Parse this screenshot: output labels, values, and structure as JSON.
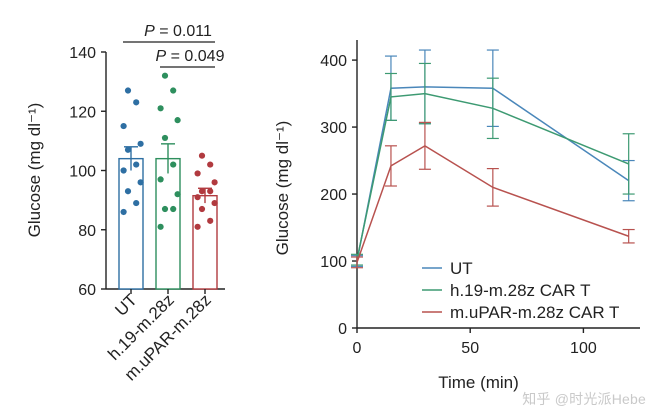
{
  "chart_data": [
    {
      "type": "bar",
      "ylabel": "Glucose (mg dl⁻¹)",
      "ylim": [
        60,
        140
      ],
      "yticks": [
        60,
        80,
        100,
        120,
        140
      ],
      "categories": [
        "UT",
        "h.19-m.28z",
        "m.uPAR-m.28z"
      ],
      "colors": [
        "#2e6fa3",
        "#2e8f5e",
        "#b13a3f"
      ],
      "bar_means": [
        104,
        104,
        91.5
      ],
      "sem": [
        4,
        5,
        2.5
      ],
      "points": [
        [
          127,
          123,
          115,
          109,
          107,
          102,
          100,
          96,
          93,
          89,
          86
        ],
        [
          132,
          127,
          121,
          117,
          111,
          102,
          97,
          92,
          87,
          87,
          81
        ],
        [
          105,
          102,
          99,
          96,
          93,
          93,
          91,
          89,
          87,
          83,
          81
        ]
      ],
      "significance": [
        {
          "from": 0,
          "to": 2,
          "p": "0.011"
        },
        {
          "from": 1,
          "to": 2,
          "p": "0.049"
        }
      ],
      "p_prefix": "P = "
    },
    {
      "type": "line",
      "xlabel": "Time (min)",
      "ylabel": "Glucose (mg dl⁻¹)",
      "xlim": [
        0,
        125
      ],
      "ylim": [
        0,
        430
      ],
      "xticks": [
        0,
        50,
        100
      ],
      "yticks": [
        0,
        100,
        200,
        300,
        400
      ],
      "x": [
        0,
        15,
        30,
        60,
        120
      ],
      "legend_position": "bottom-right",
      "series": [
        {
          "name": "UT",
          "color": "#4a87ba",
          "values": [
            100,
            358,
            360,
            358,
            220
          ],
          "err": [
            8,
            48,
            55,
            57,
            30
          ]
        },
        {
          "name": "h.19-m.28z CAR T",
          "color": "#3d9a72",
          "values": [
            102,
            345,
            350,
            328,
            245
          ],
          "err": [
            8,
            35,
            45,
            45,
            45
          ]
        },
        {
          "name": "m.uPAR-m.28z CAR T",
          "color": "#b8524f",
          "values": [
            98,
            242,
            272,
            210,
            137
          ],
          "err": [
            8,
            30,
            35,
            28,
            10
          ]
        }
      ]
    }
  ],
  "watermark": "知乎 @时光派Hebe"
}
